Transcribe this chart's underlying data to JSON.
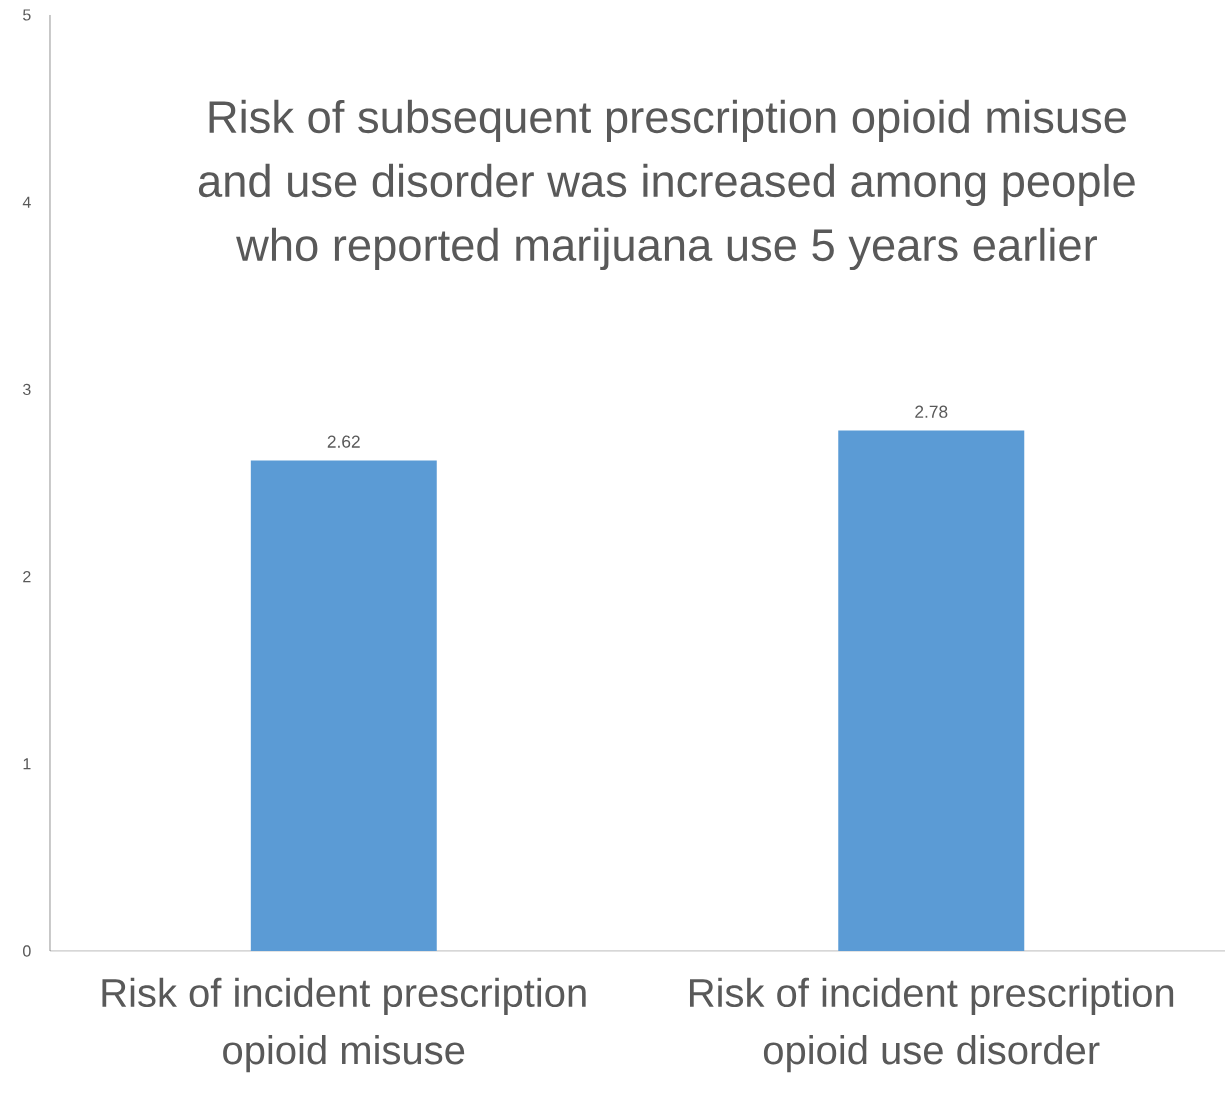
{
  "chart_data": {
    "type": "bar",
    "title": "Risk of subsequent prescription opioid misuse and use disorder was increased among people who reported marijuana use 5 years earlier",
    "categories": [
      "Risk of incident prescription opioid misuse",
      "Risk of incident prescription opioid use disorder"
    ],
    "values": [
      2.62,
      2.78
    ],
    "value_labels": [
      "2.62",
      "2.78"
    ],
    "color": "#5b9bd5",
    "ylim": [
      0,
      5
    ],
    "yticks": [
      0,
      1,
      2,
      3,
      4,
      5
    ],
    "grid": false
  }
}
